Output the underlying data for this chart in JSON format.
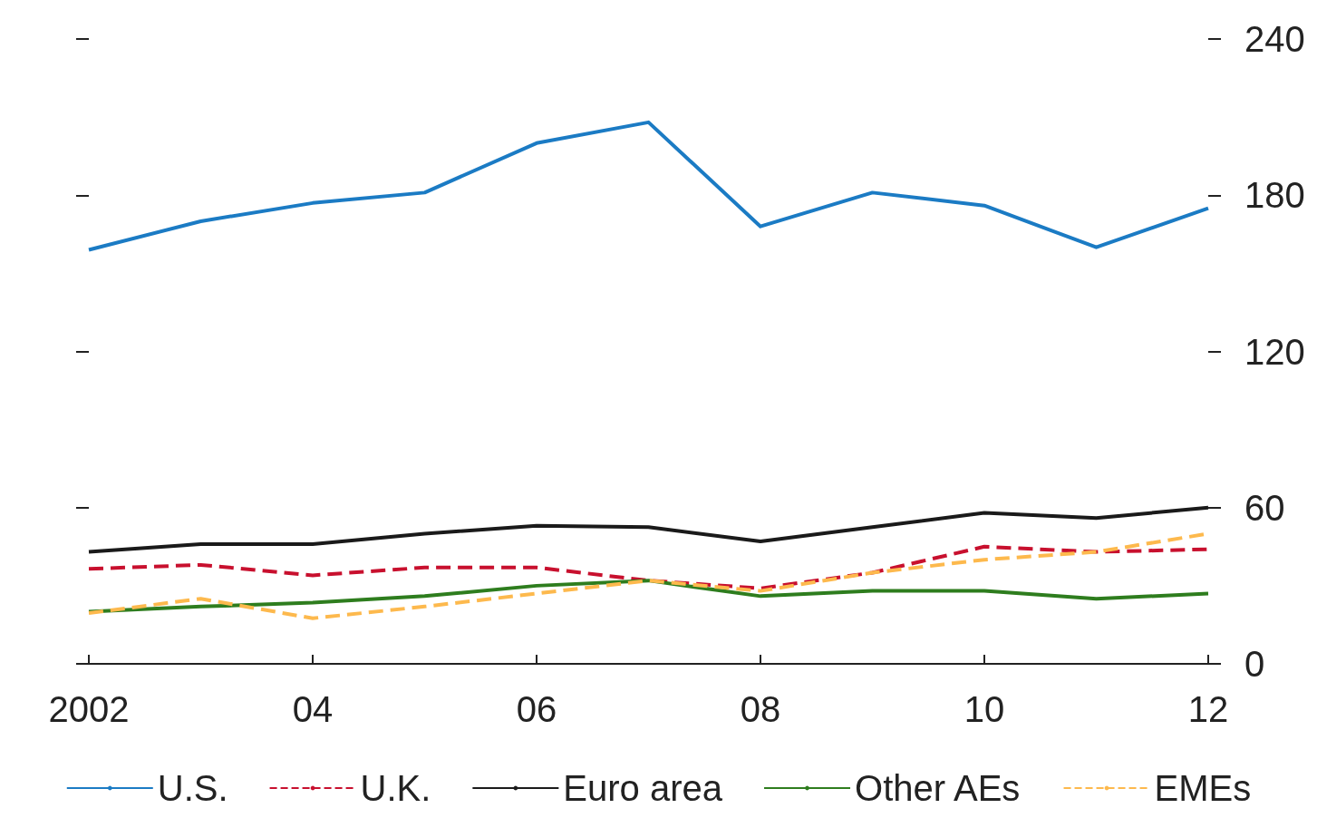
{
  "chart_data": {
    "type": "line",
    "x": [
      2002,
      2003,
      2004,
      2005,
      2006,
      2007,
      2008,
      2009,
      2010,
      2011,
      2012
    ],
    "xlim": [
      2002,
      2012
    ],
    "xticks": [
      {
        "value": 2002,
        "label": "2002"
      },
      {
        "value": 2004,
        "label": "04"
      },
      {
        "value": 2006,
        "label": "06"
      },
      {
        "value": 2008,
        "label": "08"
      },
      {
        "value": 2010,
        "label": "10"
      },
      {
        "value": 2012,
        "label": "12"
      }
    ],
    "ylim": [
      0,
      240
    ],
    "yticks": [
      0,
      60,
      120,
      180,
      240
    ],
    "grid": false,
    "legend": "bottom",
    "marker": "none",
    "series": [
      {
        "name": "U.S.",
        "color": "#1b7bc4",
        "line_style": "solid",
        "values": [
          159,
          170,
          177,
          181,
          200,
          208,
          168,
          181,
          176,
          160,
          175
        ]
      },
      {
        "name": "U.K.",
        "color": "#c8102e",
        "line_style": "dashed",
        "values": [
          36.5,
          38,
          34,
          37,
          37,
          32,
          29,
          35,
          45,
          43,
          44
        ]
      },
      {
        "name": "Euro area",
        "color": "#1a1a1a",
        "line_style": "solid",
        "values": [
          43,
          46,
          46,
          50,
          53,
          52.5,
          47,
          52.5,
          58,
          56,
          60
        ]
      },
      {
        "name": "Other AEs",
        "color": "#2e7d1e",
        "line_style": "solid",
        "values": [
          20,
          22,
          23.5,
          26,
          30,
          32,
          26,
          28,
          28,
          25,
          27
        ]
      },
      {
        "name": "EMEs",
        "color": "#fdb94d",
        "line_style": "dashed",
        "values": [
          19.5,
          25,
          17.5,
          22,
          27,
          32,
          28,
          35,
          40,
          43,
          50
        ]
      }
    ]
  }
}
